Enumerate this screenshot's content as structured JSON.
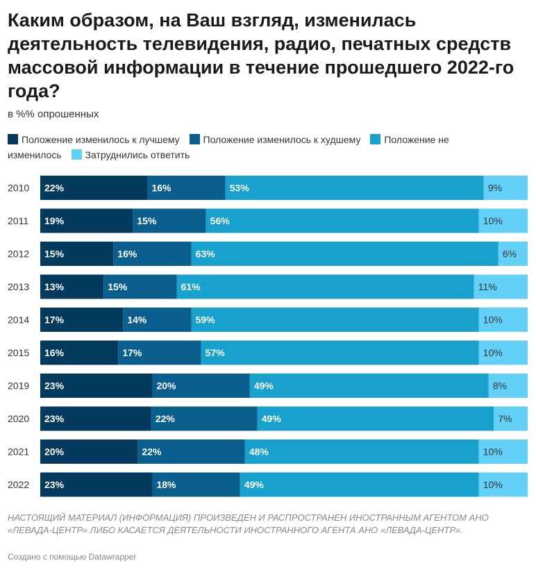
{
  "title": "Каким образом, на Ваш взгляд, изменилась деятельность телевидения, радио, печатных средств массовой информации в течение прошедшего 2022-го года?",
  "subtitle": "в %% опрошенных",
  "legend": [
    {
      "label": "Положение изменилось к лучшему",
      "color": "#053a5f"
    },
    {
      "label": "Положение изменилось к худшему",
      "color": "#0b5f8f"
    },
    {
      "label": "Положение не изменилось",
      "color": "#18a1cd"
    },
    {
      "label": "Затруднились ответить",
      "color": "#63d1f7"
    }
  ],
  "notes": "НАСТОЯЩИЙ МАТЕРИАЛ (ИНФОРМАЦИЯ) ПРОИЗВЕДЕН И РАСПРОСТРАНЕН ИНОСТРАННЫМ АГЕНТОМ АНО «ЛЕВАДА-ЦЕНТР» ЛИБО КАСАЕТСЯ ДЕЯТЕЛЬНОСТИ ИНОСТРАННОГО АГЕНТА АНО «ЛЕВАДА-ЦЕНТР».",
  "credit": "Создано с помощью Datawrapper",
  "chart_data": {
    "type": "bar",
    "orientation": "horizontal",
    "stacked": true,
    "categories": [
      "2010",
      "2011",
      "2012",
      "2013",
      "2014",
      "2015",
      "2019",
      "2020",
      "2021",
      "2022"
    ],
    "series": [
      {
        "name": "Положение изменилось к лучшему",
        "color": "#053a5f",
        "values": [
          22,
          19,
          15,
          13,
          17,
          16,
          23,
          23,
          20,
          23
        ]
      },
      {
        "name": "Положение изменилось к худшему",
        "color": "#0b5f8f",
        "values": [
          16,
          15,
          16,
          15,
          14,
          17,
          20,
          22,
          22,
          18
        ]
      },
      {
        "name": "Положение не изменилось",
        "color": "#18a1cd",
        "values": [
          53,
          56,
          63,
          61,
          59,
          57,
          49,
          49,
          48,
          49
        ]
      },
      {
        "name": "Затруднились ответить",
        "color": "#63d1f7",
        "values": [
          9,
          10,
          6,
          11,
          10,
          10,
          8,
          7,
          10,
          10
        ]
      }
    ],
    "value_suffix": "%",
    "label_colors": [
      "#ffffff",
      "#ffffff",
      "#ffffff",
      "#333333"
    ]
  }
}
